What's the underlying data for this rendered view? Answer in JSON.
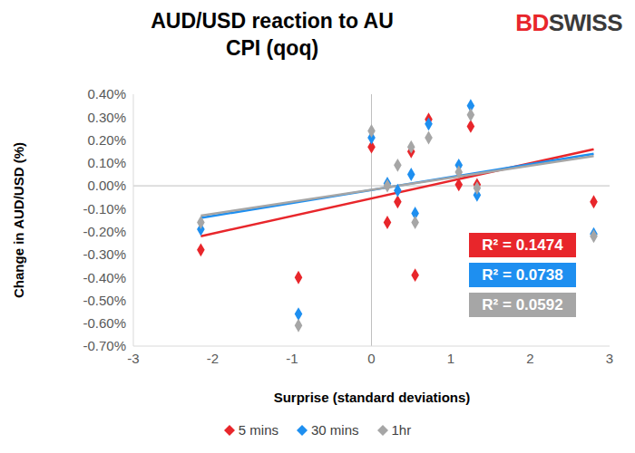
{
  "chart_data": {
    "type": "scatter",
    "title": "AUD/USD reaction to AU CPI (qoq)",
    "logo": {
      "parts": [
        "BD",
        "SWISS"
      ]
    },
    "x_label": "Surprise (standard deviations)",
    "y_label": "Change in AUD/USD (%)",
    "x": [
      -2.15,
      -0.92,
      0.0,
      0.2,
      0.33,
      0.5,
      0.55,
      0.72,
      1.1,
      1.25,
      1.33,
      2.8
    ],
    "series": [
      {
        "name": "5 mins",
        "color": "#e8262b",
        "marker": "diamond",
        "values": [
          -0.28,
          -0.4,
          0.17,
          -0.16,
          -0.07,
          0.15,
          -0.39,
          0.29,
          0.005,
          0.26,
          0.005,
          -0.07
        ],
        "trendline": {
          "x": [
            -2.15,
            2.8
          ],
          "values": [
            -0.22,
            0.16
          ]
        }
      },
      {
        "name": "30 mins",
        "color": "#1e8ff0",
        "marker": "diamond",
        "values": [
          -0.19,
          -0.56,
          0.21,
          0.01,
          -0.02,
          0.05,
          -0.12,
          0.27,
          0.09,
          0.35,
          -0.04,
          -0.21
        ],
        "trendline": {
          "x": [
            -2.15,
            2.8
          ],
          "values": [
            -0.14,
            0.14
          ]
        }
      },
      {
        "name": "1hr",
        "color": "#a6a6a6",
        "marker": "diamond",
        "values": [
          -0.16,
          -0.61,
          0.24,
          0.0,
          0.09,
          0.17,
          -0.16,
          0.21,
          0.06,
          0.31,
          -0.01,
          -0.22
        ],
        "trendline": {
          "x": [
            -2.15,
            2.8
          ],
          "values": [
            -0.13,
            0.13
          ]
        }
      }
    ],
    "annotations": [
      {
        "text": "R² = 0.1474",
        "color": "#e8262b"
      },
      {
        "text": "R² = 0.0738",
        "color": "#1e8ff0"
      },
      {
        "text": "R² = 0.0592",
        "color": "#a6a6a6"
      }
    ],
    "xlim": [
      -3,
      3
    ],
    "xticks": [
      -3,
      -2,
      -1,
      0,
      1,
      2,
      3
    ],
    "ylim": [
      -0.7,
      0.4
    ],
    "yticks": [
      {
        "value": 0.4,
        "label": "0.40%"
      },
      {
        "value": 0.3,
        "label": "0.30%"
      },
      {
        "value": 0.2,
        "label": "0.20%"
      },
      {
        "value": 0.1,
        "label": "0.10%"
      },
      {
        "value": 0.0,
        "label": "0.00%"
      },
      {
        "value": -0.1,
        "label": "-0.10%"
      },
      {
        "value": -0.2,
        "label": "-0.20%"
      },
      {
        "value": -0.3,
        "label": "-0.30%"
      },
      {
        "value": -0.4,
        "label": "-0.40%"
      },
      {
        "value": -0.5,
        "label": "-0.50%"
      },
      {
        "value": -0.6,
        "label": "-0.60%"
      },
      {
        "value": -0.7,
        "label": "-0.70%"
      }
    ],
    "grid": false,
    "legend": "bottom"
  }
}
